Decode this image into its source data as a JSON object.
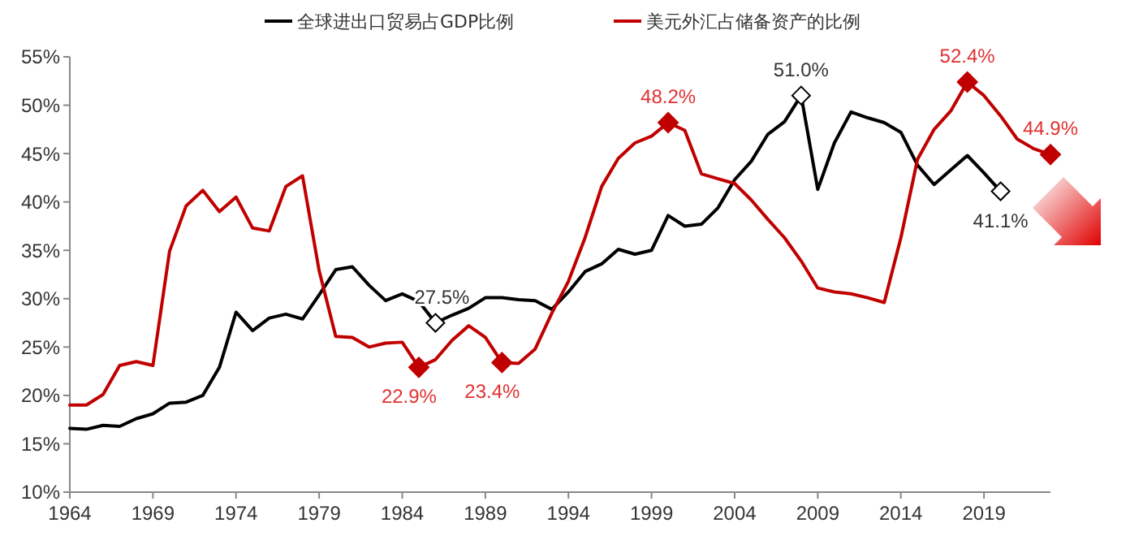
{
  "chart_data": {
    "type": "line",
    "x": [
      1964,
      1965,
      1966,
      1967,
      1968,
      1969,
      1970,
      1971,
      1972,
      1973,
      1974,
      1975,
      1976,
      1977,
      1978,
      1979,
      1980,
      1981,
      1982,
      1983,
      1984,
      1985,
      1986,
      1987,
      1988,
      1989,
      1990,
      1991,
      1992,
      1993,
      1994,
      1995,
      1996,
      1997,
      1998,
      1999,
      2000,
      2001,
      2002,
      2003,
      2004,
      2005,
      2006,
      2007,
      2008,
      2009,
      2010,
      2011,
      2012,
      2013,
      2014,
      2015,
      2016,
      2017,
      2018,
      2019,
      2020,
      2021,
      2022,
      2023
    ],
    "series": [
      {
        "name": "全球进出口贸易占GDP比例",
        "color": "#000000",
        "values": [
          16.6,
          16.5,
          16.9,
          16.8,
          17.6,
          18.1,
          19.2,
          19.3,
          20.0,
          22.9,
          28.6,
          26.7,
          28.0,
          28.4,
          27.9,
          30.4,
          33.0,
          33.3,
          31.4,
          29.8,
          30.5,
          29.7,
          27.5,
          28.3,
          29.0,
          30.1,
          30.1,
          29.9,
          29.8,
          28.9,
          30.7,
          32.8,
          33.6,
          35.1,
          34.6,
          35.0,
          38.6,
          37.5,
          37.7,
          39.4,
          42.3,
          44.2,
          47.0,
          48.3,
          51.0,
          41.3,
          46.1,
          49.3,
          48.7,
          48.2,
          47.2,
          43.8,
          41.8,
          43.3,
          44.8,
          43.0,
          41.1,
          null,
          null,
          null
        ]
      },
      {
        "name": "美元外汇占储备资产的比例",
        "color": "#c00000",
        "values": [
          19.0,
          19.0,
          20.1,
          23.1,
          23.5,
          23.1,
          34.9,
          39.6,
          41.2,
          39.0,
          40.5,
          37.3,
          37.0,
          41.6,
          42.7,
          32.9,
          26.1,
          26.0,
          25.0,
          25.4,
          25.5,
          22.9,
          23.7,
          25.7,
          27.2,
          26.0,
          23.4,
          23.3,
          24.8,
          28.5,
          31.8,
          36.3,
          41.6,
          44.5,
          46.1,
          46.8,
          48.2,
          47.4,
          42.9,
          42.4,
          41.9,
          40.2,
          38.2,
          36.3,
          33.9,
          31.1,
          30.7,
          30.5,
          30.1,
          29.6,
          36.3,
          44.4,
          47.5,
          49.4,
          52.4,
          51.0,
          48.9,
          46.5,
          45.5,
          44.9
        ]
      }
    ],
    "xlim": [
      1964,
      2023
    ],
    "xticks": [
      1964,
      1969,
      1974,
      1979,
      1984,
      1989,
      1994,
      1999,
      2004,
      2009,
      2014,
      2019
    ],
    "ylim": [
      10,
      55
    ],
    "yticks": [
      {
        "value": 10,
        "label": "10%"
      },
      {
        "value": 15,
        "label": "15%"
      },
      {
        "value": 20,
        "label": "20%"
      },
      {
        "value": 25,
        "label": "25%"
      },
      {
        "value": 30,
        "label": "30%"
      },
      {
        "value": 35,
        "label": "35%"
      },
      {
        "value": 40,
        "label": "40%"
      },
      {
        "value": 45,
        "label": "45%"
      },
      {
        "value": 50,
        "label": "50%"
      },
      {
        "value": 55,
        "label": "55%"
      }
    ],
    "annotations": [
      {
        "text": "27.5%",
        "x": 1986,
        "y": 27.5
      },
      {
        "text": "51.0%",
        "x": 2008,
        "y": 51.0
      },
      {
        "text": "41.1%",
        "x": 2020,
        "y": 41.1
      },
      {
        "text": "22.9%",
        "x": 1985,
        "y": 22.9
      },
      {
        "text": "23.4%",
        "x": 1990,
        "y": 23.4
      },
      {
        "text": "48.2%",
        "x": 2000,
        "y": 48.2
      },
      {
        "text": "52.4%",
        "x": 2018,
        "y": 52.4
      },
      {
        "text": "44.9%",
        "x": 2023,
        "y": 44.9
      }
    ],
    "legend": "top",
    "grid": false,
    "line_style": "solid"
  }
}
